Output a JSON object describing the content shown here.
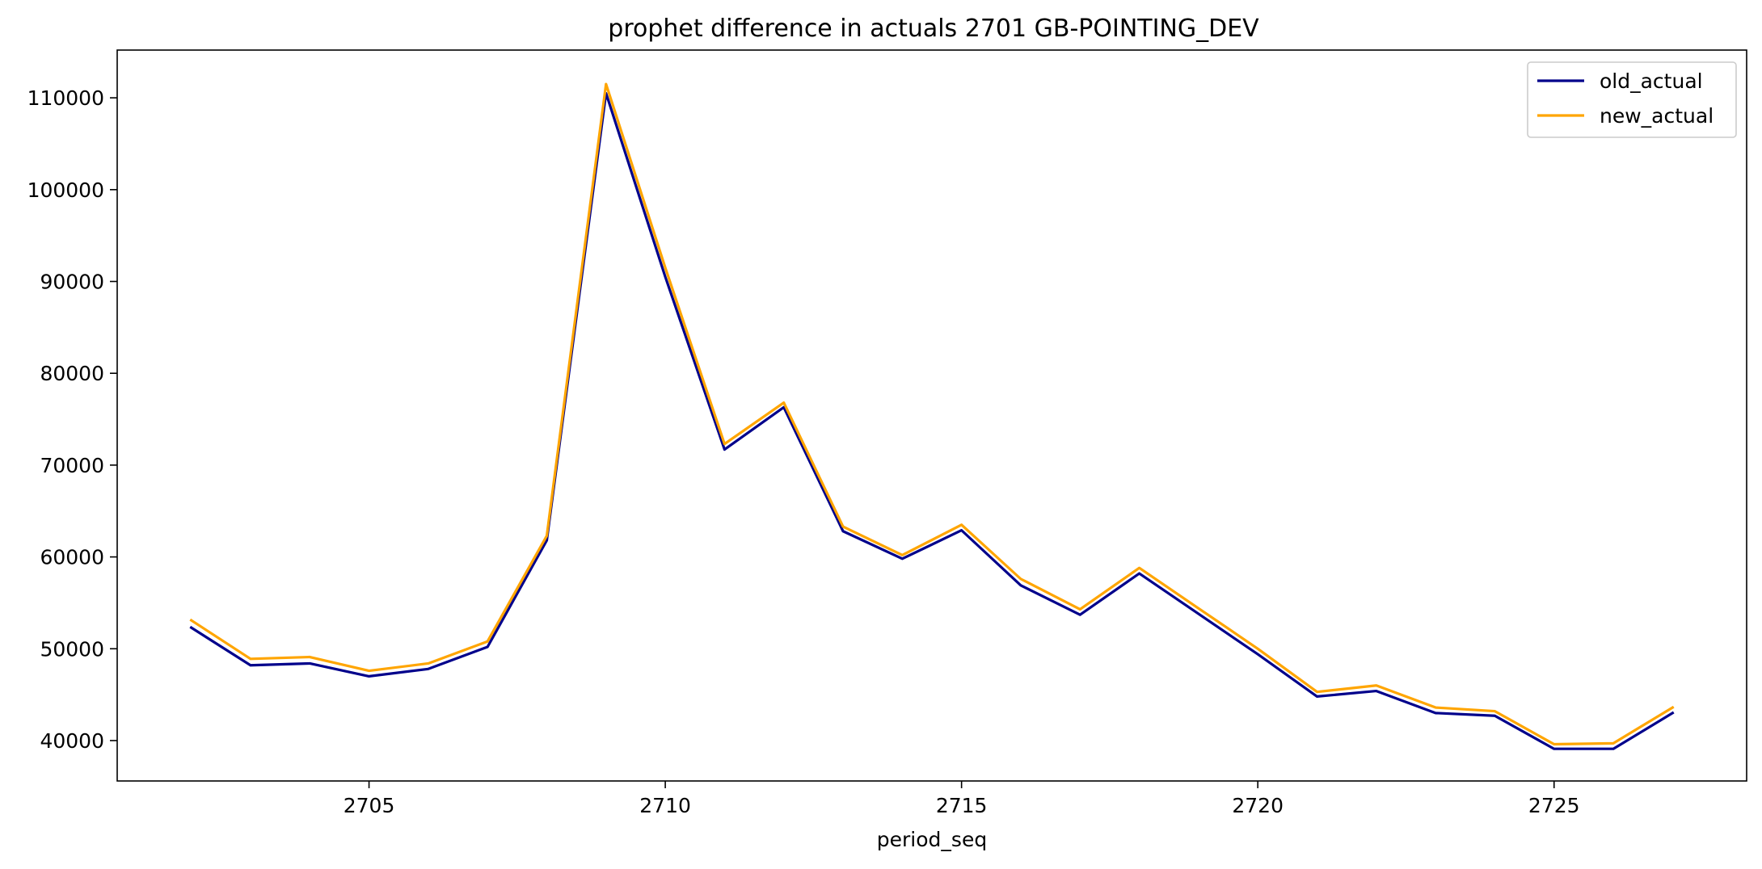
{
  "chart_data": {
    "type": "line",
    "title": "prophet difference in actuals 2701 GB-POINTING_DEV",
    "xlabel": "period_seq",
    "ylabel": "",
    "xlim": [
      2700.75,
      2728.25
    ],
    "ylim": [
      35600,
      115200
    ],
    "xticks": [
      2705,
      2710,
      2715,
      2720,
      2725
    ],
    "yticks": [
      40000,
      50000,
      60000,
      70000,
      80000,
      90000,
      100000,
      110000
    ],
    "grid": false,
    "legend_position": "top-right",
    "x": [
      2702,
      2703,
      2704,
      2705,
      2706,
      2707,
      2708,
      2709,
      2710,
      2711,
      2712,
      2713,
      2714,
      2715,
      2716,
      2717,
      2718,
      2719,
      2720,
      2721,
      2722,
      2723,
      2724,
      2725,
      2726,
      2727
    ],
    "series": [
      {
        "name": "old_actual",
        "color": "#00008b",
        "values": [
          52300,
          48200,
          48400,
          47000,
          47800,
          50200,
          61800,
          110500,
          90500,
          71700,
          76300,
          62800,
          59800,
          62900,
          56900,
          53700,
          58200,
          53800,
          49400,
          44800,
          45400,
          43000,
          42700,
          39100,
          39100,
          43000
        ]
      },
      {
        "name": "new_actual",
        "color": "#ffa500",
        "values": [
          53100,
          48900,
          49100,
          47600,
          48400,
          50800,
          62300,
          111500,
          91500,
          72300,
          76800,
          63300,
          60200,
          63500,
          57600,
          54300,
          58800,
          54400,
          50000,
          45300,
          46000,
          43600,
          43200,
          39600,
          39700,
          43600
        ]
      }
    ]
  }
}
